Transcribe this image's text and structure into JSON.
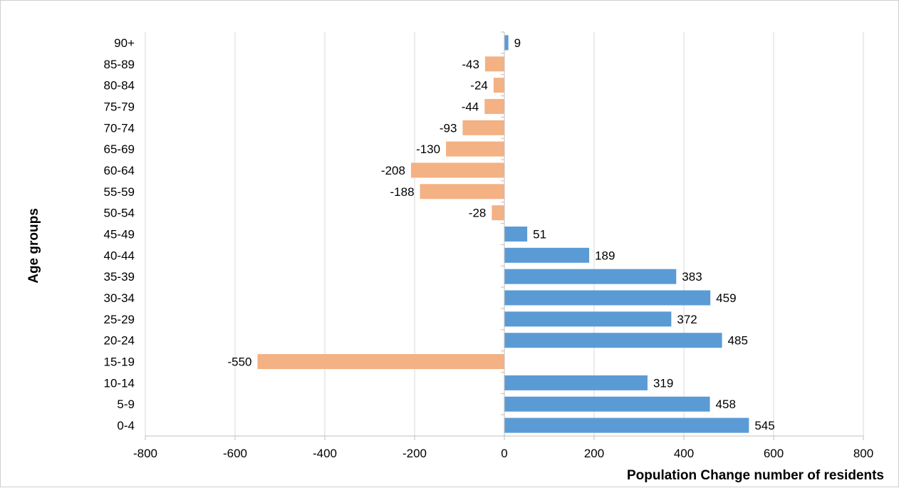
{
  "chart_data": {
    "type": "bar",
    "orientation": "horizontal",
    "title": "",
    "xlabel": "Population Change number of residents",
    "ylabel": "Age  groups",
    "xlim": [
      -800,
      800
    ],
    "xticks": [
      -800,
      -600,
      -400,
      -200,
      0,
      200,
      400,
      600,
      800
    ],
    "grid": true,
    "legend": "none",
    "categories": [
      "0-4",
      "5-9",
      "10-14",
      "15-19",
      "20-24",
      "25-29",
      "30-34",
      "35-39",
      "40-44",
      "45-49",
      "50-54",
      "55-59",
      "60-64",
      "65-69",
      "70-74",
      "75-79",
      "80-84",
      "85-89",
      "90+"
    ],
    "values": [
      545,
      458,
      319,
      -550,
      485,
      372,
      459,
      383,
      189,
      51,
      -28,
      -188,
      -208,
      -130,
      -93,
      -44,
      -24,
      -43,
      9
    ],
    "colors": {
      "positive": "#5b9bd5",
      "negative": "#f4b183"
    }
  }
}
